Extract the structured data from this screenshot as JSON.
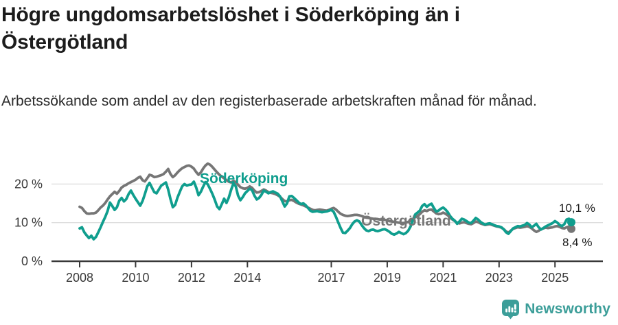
{
  "header": {
    "title": "Högre ungdomsarbetslöshet i Söderköping än i Östergötland",
    "subtitle": "Arbetssökande som andel av den registerbaserade arbetskraften månad för månad."
  },
  "chart_data": {
    "type": "line",
    "unit": "%",
    "x_start": 2008.0,
    "x_step_months": 1,
    "x_ticks": [
      2008,
      2010,
      2012,
      2014,
      2017,
      2019,
      2021,
      2023,
      2025
    ],
    "y_ticks": [
      {
        "value": 0,
        "label": "0 %"
      },
      {
        "value": 10,
        "label": "10 %"
      },
      {
        "value": 20,
        "label": "20 %"
      }
    ],
    "ylim": [
      0,
      27
    ],
    "grid": true,
    "legend_position": "inline-labels",
    "colors": {
      "grid": "#dedede",
      "axis": "#383838",
      "tick_text": "#3a3a3a"
    },
    "series": [
      {
        "name": "Söderköping",
        "color": "#109e8e",
        "end_label": "10,1 %",
        "end_value": 10.1,
        "values": [
          8.5,
          8.8,
          7.5,
          6.7,
          6.0,
          6.6,
          5.7,
          6.3,
          7.5,
          8.8,
          10.2,
          11.5,
          13.0,
          15.2,
          14.3,
          13.3,
          14.0,
          15.7,
          16.4,
          15.5,
          16.1,
          17.4,
          18.3,
          17.2,
          16.2,
          15.3,
          14.4,
          15.6,
          17.4,
          19.4,
          20.3,
          19.1,
          17.9,
          17.6,
          18.6,
          19.6,
          20.0,
          20.4,
          18.6,
          16.1,
          14.0,
          14.6,
          16.5,
          18.0,
          19.4,
          20.0,
          19.6,
          19.8,
          19.9,
          20.6,
          19.1,
          17.1,
          18.0,
          19.3,
          20.5,
          19.9,
          18.7,
          17.4,
          15.9,
          14.2,
          13.5,
          14.8,
          16.2,
          15.1,
          16.5,
          18.5,
          20.2,
          19.4,
          17.0,
          15.8,
          16.6,
          17.6,
          18.2,
          18.8,
          18.4,
          17.0,
          16.0,
          16.4,
          17.2,
          18.3,
          18.0,
          17.6,
          17.9,
          18.1,
          17.8,
          17.5,
          16.8,
          15.5,
          14.2,
          15.0,
          16.8,
          16.9,
          16.4,
          15.8,
          15.2,
          14.8,
          15.0,
          14.5,
          13.8,
          13.1,
          12.8,
          12.9,
          13.0,
          12.8,
          12.7,
          12.8,
          12.9,
          13.1,
          13.3,
          12.8,
          11.5,
          10.0,
          8.6,
          7.4,
          7.3,
          7.9,
          8.6,
          9.6,
          10.3,
          10.6,
          10.3,
          9.4,
          8.6,
          8.0,
          7.8,
          8.1,
          8.2,
          7.9,
          7.8,
          8.0,
          8.2,
          8.3,
          8.0,
          7.6,
          7.1,
          6.9,
          7.2,
          7.6,
          7.3,
          7.0,
          7.3,
          7.9,
          9.0,
          10.6,
          12.1,
          12.6,
          13.1,
          14.3,
          14.8,
          14.1,
          14.6,
          14.9,
          13.8,
          12.9,
          13.1,
          13.6,
          13.9,
          13.4,
          12.7,
          11.7,
          11.0,
          10.5,
          9.7,
          10.3,
          11.0,
          10.8,
          10.4,
          10.0,
          9.9,
          10.5,
          11.2,
          10.8,
          10.2,
          9.8,
          9.5,
          9.7,
          9.8,
          9.6,
          9.3,
          9.1,
          9.0,
          8.8,
          8.3,
          7.5,
          7.1,
          7.8,
          8.5,
          8.8,
          9.1,
          9.0,
          9.2,
          9.4,
          9.9,
          9.5,
          8.8,
          9.2,
          9.7,
          8.8,
          8.2,
          8.6,
          9.0,
          9.3,
          9.6,
          9.9,
          10.4,
          10.0,
          9.4,
          9.1,
          9.6,
          10.8,
          11.0,
          10.1
        ]
      },
      {
        "name": "Östergötland",
        "color": "#767676",
        "end_label": "8,4 %",
        "end_value": 8.4,
        "values": [
          14.1,
          13.8,
          13.0,
          12.4,
          12.3,
          12.4,
          12.4,
          12.6,
          13.2,
          13.9,
          14.4,
          15.1,
          16.0,
          16.8,
          17.4,
          18.0,
          17.5,
          18.2,
          19.1,
          19.5,
          19.8,
          20.2,
          20.5,
          20.8,
          21.1,
          21.6,
          21.9,
          21.0,
          20.7,
          21.5,
          22.4,
          22.2,
          21.8,
          21.9,
          22.1,
          22.3,
          22.6,
          23.2,
          23.9,
          22.6,
          21.8,
          22.3,
          23.0,
          23.6,
          24.1,
          24.4,
          24.7,
          24.8,
          24.5,
          24.0,
          23.1,
          22.4,
          23.0,
          24.0,
          24.8,
          25.3,
          25.0,
          24.4,
          23.7,
          23.0,
          22.4,
          21.9,
          21.5,
          21.0,
          20.6,
          20.4,
          20.8,
          20.5,
          19.8,
          19.2,
          18.9,
          18.8,
          19.0,
          19.4,
          19.0,
          18.3,
          17.8,
          17.9,
          18.2,
          18.6,
          18.3,
          17.9,
          17.7,
          17.6,
          17.4,
          17.1,
          16.7,
          16.1,
          15.6,
          15.5,
          15.8,
          15.9,
          15.6,
          15.2,
          14.9,
          14.7,
          14.5,
          14.2,
          13.9,
          13.6,
          13.3,
          13.2,
          13.3,
          13.4,
          13.3,
          13.2,
          13.1,
          13.3,
          13.6,
          13.8,
          13.4,
          12.8,
          12.3,
          12.0,
          11.8,
          11.7,
          11.8,
          11.9,
          12.0,
          12.0,
          11.9,
          11.7,
          11.5,
          11.3,
          11.2,
          11.1,
          11.0,
          11.0,
          10.9,
          10.8,
          10.8,
          10.7,
          10.6,
          10.4,
          10.3,
          10.2,
          10.1,
          10.0,
          9.9,
          9.9,
          10.0,
          10.2,
          10.5,
          10.9,
          11.4,
          11.7,
          12.2,
          12.8,
          13.2,
          13.0,
          13.3,
          13.4,
          12.9,
          12.4,
          12.2,
          12.3,
          12.6,
          12.3,
          11.9,
          11.3,
          10.8,
          10.4,
          10.0,
          9.8,
          10.0,
          10.1,
          9.9,
          9.7,
          9.6,
          9.9,
          10.3,
          10.1,
          9.8,
          9.6,
          9.4,
          9.5,
          9.6,
          9.4,
          9.2,
          9.0,
          8.9,
          8.7,
          8.3,
          7.7,
          7.4,
          7.9,
          8.4,
          8.6,
          8.8,
          8.7,
          8.8,
          8.9,
          9.1,
          8.9,
          8.5,
          8.0,
          7.6,
          7.9,
          8.3,
          8.5,
          8.7,
          8.6,
          8.7,
          8.8,
          9.0,
          9.1,
          8.9,
          8.6,
          8.5,
          8.8,
          9.0,
          8.4
        ]
      }
    ]
  },
  "footer": {
    "brand": "Newsworthy",
    "brand_color": "#3c9e99"
  }
}
